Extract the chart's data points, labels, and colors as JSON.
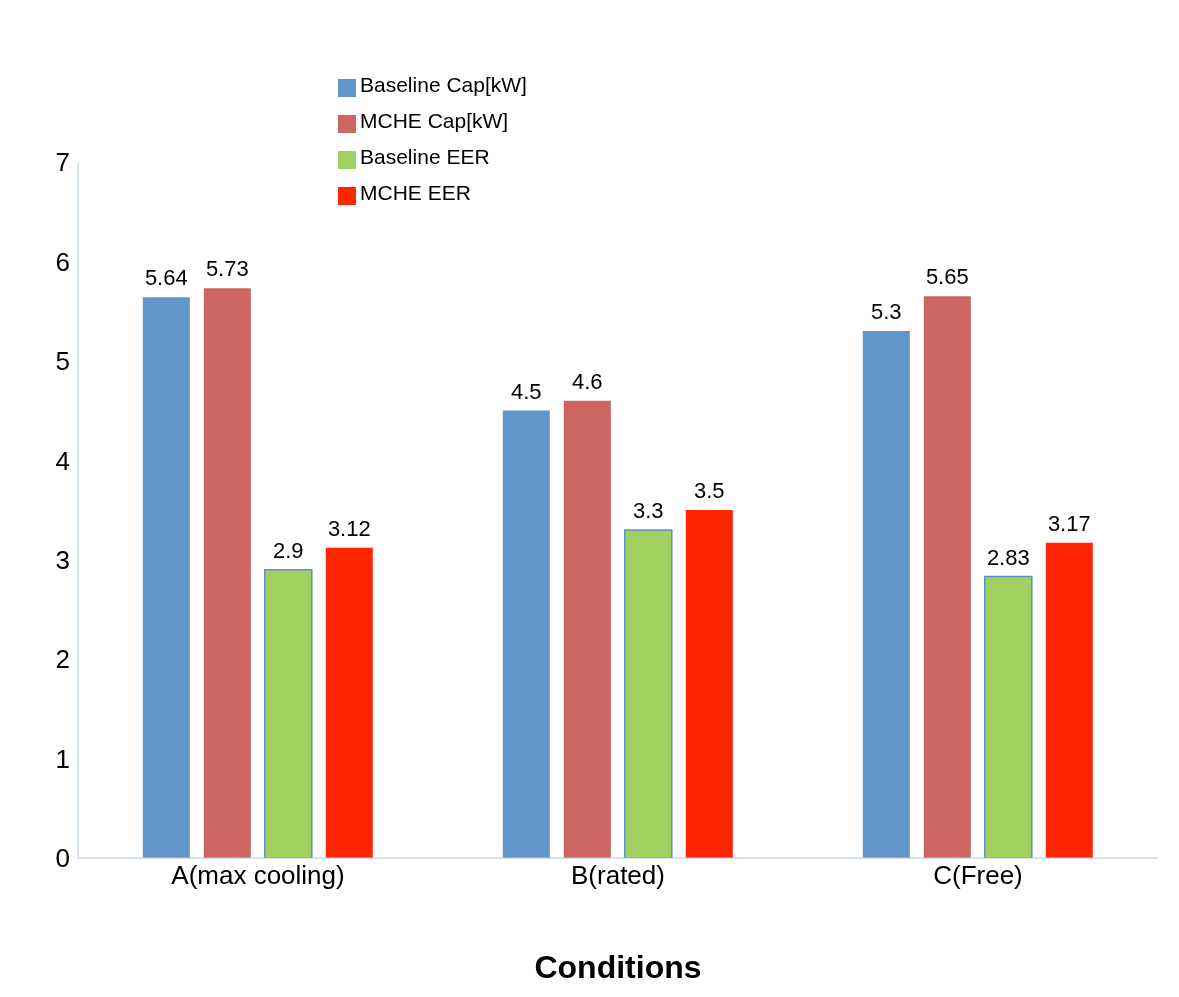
{
  "chart_data": {
    "type": "bar",
    "xlabel": "Conditions",
    "categories": [
      "A(max cooling)",
      "B(rated)",
      "C(Free)"
    ],
    "series": [
      {
        "name": "Baseline Cap[kW]",
        "color": "#6096c9",
        "values": [
          5.64,
          4.5,
          5.3
        ]
      },
      {
        "name": "MCHE Cap[kW]",
        "color": "#cd6560",
        "values": [
          5.73,
          4.6,
          5.65
        ]
      },
      {
        "name": "Baseline EER",
        "color": "#a0d060",
        "values": [
          2.9,
          3.3,
          2.83
        ]
      },
      {
        "name": "MCHE EER",
        "color": "#ff2600",
        "values": [
          3.12,
          3.5,
          3.17
        ]
      }
    ],
    "ylim": [
      0,
      7
    ],
    "yticks": [
      0,
      1,
      2,
      3,
      4,
      5,
      6,
      7
    ],
    "grid": false,
    "legend": "top",
    "data_labels": true
  }
}
